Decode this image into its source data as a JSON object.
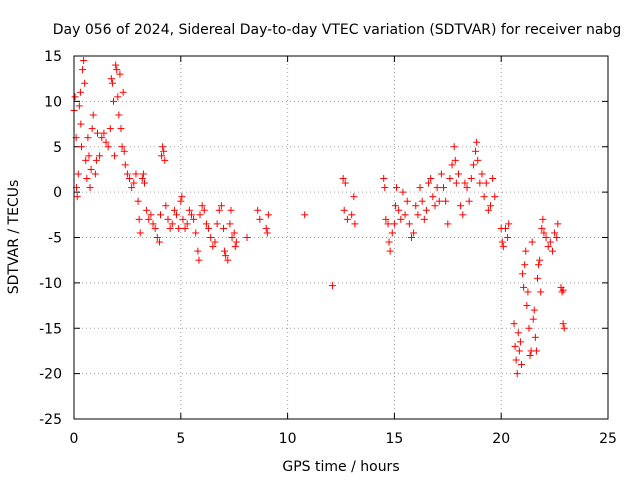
{
  "chart_data": {
    "type": "scatter",
    "title": "Day 056 of 2024, Sidereal Day-to-day VTEC variation (SDTVAR) for receiver nabg",
    "xlabel": "GPS time / hours",
    "ylabel": "SDTVAR / TECUs",
    "xlim": [
      0,
      25
    ],
    "ylim": [
      -25,
      15
    ],
    "xticks": [
      "0",
      "5",
      "10",
      "15",
      "20",
      "25"
    ],
    "xtick_values": [
      0,
      5,
      10,
      15,
      20,
      25
    ],
    "yticks": [
      "15",
      "10",
      "5",
      "0",
      "-5",
      "-10",
      "-15",
      "-20",
      "-25"
    ],
    "ytick_values": [
      15,
      10,
      5,
      0,
      -5,
      -10,
      -15,
      -20,
      -25
    ],
    "grid": true,
    "marker": "plus",
    "color": "#ff0000",
    "series": [
      {
        "name": "SDTVAR",
        "points": [
          [
            0.0,
            9.0
          ],
          [
            0.05,
            10.5
          ],
          [
            0.1,
            6.0
          ],
          [
            0.12,
            0.5
          ],
          [
            0.15,
            -0.5
          ],
          [
            0.2,
            2.0
          ],
          [
            0.25,
            9.5
          ],
          [
            0.3,
            11.0
          ],
          [
            0.32,
            7.5
          ],
          [
            0.35,
            5.0
          ],
          [
            0.4,
            13.5
          ],
          [
            0.45,
            14.5
          ],
          [
            0.5,
            12.0
          ],
          [
            0.55,
            3.5
          ],
          [
            0.6,
            1.5
          ],
          [
            0.65,
            6.0
          ],
          [
            0.7,
            4.0
          ],
          [
            0.75,
            0.5
          ],
          [
            0.8,
            2.5
          ],
          [
            0.85,
            7.0
          ],
          [
            0.9,
            8.5
          ],
          [
            1.0,
            2.0
          ],
          [
            1.05,
            3.5
          ],
          [
            1.1,
            6.5
          ],
          [
            1.2,
            4.0
          ],
          [
            1.3,
            6.0
          ],
          [
            1.4,
            6.5
          ],
          [
            1.5,
            5.5
          ],
          [
            1.6,
            5.0
          ],
          [
            1.7,
            7.0
          ],
          [
            1.75,
            12.5
          ],
          [
            1.8,
            12.0
          ],
          [
            1.85,
            10.0
          ],
          [
            1.9,
            4.0
          ],
          [
            1.95,
            14.0
          ],
          [
            2.0,
            13.5
          ],
          [
            2.05,
            10.5
          ],
          [
            2.1,
            8.5
          ],
          [
            2.15,
            13.0
          ],
          [
            2.2,
            7.0
          ],
          [
            2.25,
            5.0
          ],
          [
            2.3,
            11.0
          ],
          [
            2.35,
            4.5
          ],
          [
            2.4,
            3.0
          ],
          [
            2.5,
            2.0
          ],
          [
            2.6,
            1.5
          ],
          [
            2.7,
            0.5
          ],
          [
            2.8,
            1.0
          ],
          [
            2.9,
            2.0
          ],
          [
            3.0,
            -1.0
          ],
          [
            3.05,
            -3.0
          ],
          [
            3.1,
            -4.5
          ],
          [
            3.2,
            1.5
          ],
          [
            3.25,
            2.0
          ],
          [
            3.3,
            1.0
          ],
          [
            3.4,
            -2.0
          ],
          [
            3.5,
            -3.0
          ],
          [
            3.6,
            -2.5
          ],
          [
            3.7,
            -3.5
          ],
          [
            3.8,
            -4.0
          ],
          [
            3.9,
            -5.0
          ],
          [
            4.0,
            -5.5
          ],
          [
            4.05,
            -2.5
          ],
          [
            4.1,
            4.0
          ],
          [
            4.15,
            5.0
          ],
          [
            4.2,
            4.5
          ],
          [
            4.25,
            3.5
          ],
          [
            4.3,
            -1.5
          ],
          [
            4.4,
            -3.0
          ],
          [
            4.5,
            -4.0
          ],
          [
            4.6,
            -3.5
          ],
          [
            4.7,
            -2.0
          ],
          [
            4.8,
            -2.5
          ],
          [
            4.9,
            -4.0
          ],
          [
            5.0,
            -1.0
          ],
          [
            5.05,
            -0.5
          ],
          [
            5.1,
            -3.0
          ],
          [
            5.2,
            -4.0
          ],
          [
            5.3,
            -3.5
          ],
          [
            5.4,
            -2.0
          ],
          [
            5.5,
            -2.5
          ],
          [
            5.6,
            -3.0
          ],
          [
            5.7,
            -4.5
          ],
          [
            5.8,
            -6.5
          ],
          [
            5.85,
            -7.5
          ],
          [
            5.9,
            -2.5
          ],
          [
            6.0,
            -1.5
          ],
          [
            6.1,
            -2.0
          ],
          [
            6.2,
            -3.5
          ],
          [
            6.3,
            -4.0
          ],
          [
            6.4,
            -5.0
          ],
          [
            6.5,
            -6.0
          ],
          [
            6.6,
            -5.5
          ],
          [
            6.7,
            -3.5
          ],
          [
            6.8,
            -2.0
          ],
          [
            6.9,
            -1.5
          ],
          [
            7.0,
            -4.0
          ],
          [
            7.05,
            -6.5
          ],
          [
            7.1,
            -7.0
          ],
          [
            7.2,
            -7.5
          ],
          [
            7.3,
            -3.5
          ],
          [
            7.35,
            -2.0
          ],
          [
            7.4,
            -5.0
          ],
          [
            7.5,
            -4.5
          ],
          [
            7.55,
            -6.0
          ],
          [
            7.6,
            -5.5
          ],
          [
            8.1,
            -5.0
          ],
          [
            8.6,
            -2.0
          ],
          [
            8.7,
            -3.0
          ],
          [
            9.0,
            -4.0
          ],
          [
            9.05,
            -4.5
          ],
          [
            9.1,
            -2.5
          ],
          [
            10.8,
            -2.5
          ],
          [
            12.1,
            -10.3
          ],
          [
            12.6,
            1.5
          ],
          [
            12.7,
            1.0
          ],
          [
            12.65,
            -2.0
          ],
          [
            12.8,
            -3.0
          ],
          [
            13.0,
            -2.5
          ],
          [
            13.1,
            -0.5
          ],
          [
            13.15,
            -3.5
          ],
          [
            14.5,
            1.5
          ],
          [
            14.55,
            0.5
          ],
          [
            14.6,
            -3.0
          ],
          [
            14.7,
            -3.5
          ],
          [
            14.75,
            -5.5
          ],
          [
            14.8,
            -6.5
          ],
          [
            14.9,
            -4.5
          ],
          [
            15.0,
            -3.5
          ],
          [
            15.05,
            -1.5
          ],
          [
            15.1,
            0.5
          ],
          [
            15.2,
            -2.0
          ],
          [
            15.3,
            -3.0
          ],
          [
            15.4,
            0.0
          ],
          [
            15.5,
            -2.5
          ],
          [
            15.6,
            -1.0
          ],
          [
            15.7,
            -3.5
          ],
          [
            15.8,
            -5.0
          ],
          [
            15.9,
            -4.5
          ],
          [
            16.0,
            -1.5
          ],
          [
            16.1,
            -2.5
          ],
          [
            16.2,
            0.5
          ],
          [
            16.3,
            -1.0
          ],
          [
            16.4,
            -3.0
          ],
          [
            16.5,
            -2.0
          ],
          [
            16.6,
            1.0
          ],
          [
            16.7,
            1.5
          ],
          [
            16.8,
            -0.5
          ],
          [
            16.9,
            -1.5
          ],
          [
            17.0,
            0.5
          ],
          [
            17.1,
            -1.0
          ],
          [
            17.2,
            2.0
          ],
          [
            17.3,
            0.5
          ],
          [
            17.4,
            -1.0
          ],
          [
            17.5,
            -3.5
          ],
          [
            17.6,
            1.5
          ],
          [
            17.7,
            3.0
          ],
          [
            17.8,
            5.0
          ],
          [
            17.85,
            3.5
          ],
          [
            17.9,
            1.0
          ],
          [
            18.0,
            2.0
          ],
          [
            18.1,
            -1.5
          ],
          [
            18.2,
            -2.5
          ],
          [
            18.3,
            1.0
          ],
          [
            18.4,
            0.5
          ],
          [
            18.5,
            -1.0
          ],
          [
            18.6,
            1.5
          ],
          [
            18.7,
            3.0
          ],
          [
            18.8,
            4.5
          ],
          [
            18.85,
            5.5
          ],
          [
            18.9,
            3.5
          ],
          [
            19.0,
            1.0
          ],
          [
            19.1,
            2.0
          ],
          [
            19.2,
            -0.5
          ],
          [
            19.3,
            1.0
          ],
          [
            19.4,
            -2.0
          ],
          [
            19.5,
            -1.5
          ],
          [
            19.6,
            1.5
          ],
          [
            19.7,
            -0.5
          ],
          [
            20.0,
            -4.0
          ],
          [
            20.05,
            -5.5
          ],
          [
            20.1,
            -6.0
          ],
          [
            20.2,
            -4.0
          ],
          [
            20.3,
            -5.0
          ],
          [
            20.35,
            -3.5
          ],
          [
            20.6,
            -14.5
          ],
          [
            20.65,
            -17.0
          ],
          [
            20.7,
            -18.5
          ],
          [
            20.75,
            -20.0
          ],
          [
            20.8,
            -15.5
          ],
          [
            20.85,
            -17.5
          ],
          [
            20.9,
            -16.5
          ],
          [
            20.95,
            -19.0
          ],
          [
            21.0,
            -9.0
          ],
          [
            21.05,
            -10.5
          ],
          [
            21.1,
            -8.0
          ],
          [
            21.15,
            -6.5
          ],
          [
            21.2,
            -12.5
          ],
          [
            21.25,
            -11.0
          ],
          [
            21.3,
            -15.0
          ],
          [
            21.35,
            -18.0
          ],
          [
            21.4,
            -17.5
          ],
          [
            21.45,
            -5.5
          ],
          [
            21.5,
            -14.0
          ],
          [
            21.55,
            -13.0
          ],
          [
            21.6,
            -16.0
          ],
          [
            21.65,
            -17.5
          ],
          [
            21.7,
            -9.5
          ],
          [
            21.75,
            -8.0
          ],
          [
            21.8,
            -7.5
          ],
          [
            21.85,
            -11.0
          ],
          [
            21.9,
            -4.0
          ],
          [
            21.95,
            -3.0
          ],
          [
            22.0,
            -4.5
          ],
          [
            22.1,
            -5.0
          ],
          [
            22.2,
            -6.0
          ],
          [
            22.3,
            -5.5
          ],
          [
            22.4,
            -6.5
          ],
          [
            22.5,
            -4.5
          ],
          [
            22.6,
            -5.0
          ],
          [
            22.65,
            -3.5
          ],
          [
            22.8,
            -10.5
          ],
          [
            22.85,
            -11.0
          ],
          [
            22.9,
            -14.5
          ],
          [
            22.95,
            -15.0
          ],
          [
            22.9,
            -10.8
          ]
        ]
      }
    ]
  }
}
